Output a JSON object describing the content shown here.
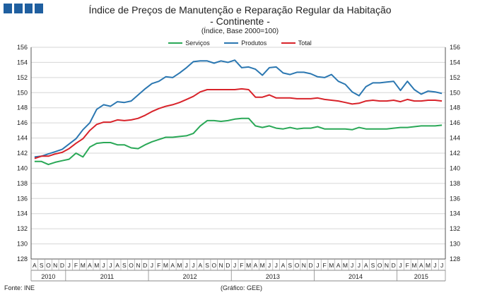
{
  "header": {
    "title": "Índice de Preços de Manutenção e Reparação Regular da Habitação",
    "subtitle": "- Continente -",
    "note": "(Índice, Base 2000=100)"
  },
  "footer": {
    "source": "Fonte: INE",
    "credit": "(Gráfico: GEE)"
  },
  "colors": {
    "Serviços": "#2aa857",
    "Produtos": "#2b77b1",
    "Total": "#d8232a",
    "logo": "#1f5fa0"
  },
  "chart_data": {
    "type": "line",
    "ylim": [
      128,
      156
    ],
    "yticks": [
      128,
      130,
      132,
      134,
      136,
      138,
      140,
      142,
      144,
      146,
      148,
      150,
      152,
      154,
      156
    ],
    "grid": true,
    "legend_position": "top-center",
    "x_month_labels": [
      "A",
      "S",
      "O",
      "N",
      "D",
      "J",
      "F",
      "M",
      "A",
      "M",
      "J",
      "J",
      "A",
      "S",
      "O",
      "N",
      "D",
      "J",
      "F",
      "M",
      "A",
      "M",
      "J",
      "J",
      "A",
      "S",
      "O",
      "N",
      "D",
      "J",
      "F",
      "M",
      "A",
      "M",
      "J",
      "J",
      "A",
      "S",
      "O",
      "N",
      "D",
      "J",
      "F",
      "M",
      "A",
      "M",
      "J",
      "J",
      "A",
      "S",
      "O",
      "N",
      "D",
      "J",
      "F",
      "M",
      "A",
      "M",
      "J",
      "J"
    ],
    "x_year_labels": [
      {
        "year": "2010",
        "start": 0,
        "end": 4
      },
      {
        "year": "2011",
        "start": 5,
        "end": 16
      },
      {
        "year": "2012",
        "start": 17,
        "end": 28
      },
      {
        "year": "2013",
        "start": 29,
        "end": 40
      },
      {
        "year": "2014",
        "start": 41,
        "end": 52
      },
      {
        "year": "2015",
        "start": 53,
        "end": 59
      }
    ],
    "series": [
      {
        "name": "Serviços",
        "values": [
          140.9,
          140.9,
          140.5,
          140.8,
          141.0,
          141.2,
          142.0,
          141.5,
          142.8,
          143.3,
          143.4,
          143.4,
          143.1,
          143.1,
          142.7,
          142.6,
          143.1,
          143.5,
          143.8,
          144.1,
          144.1,
          144.2,
          144.3,
          144.6,
          145.6,
          146.3,
          146.3,
          146.2,
          146.3,
          146.5,
          146.6,
          146.6,
          145.6,
          145.4,
          145.6,
          145.3,
          145.2,
          145.4,
          145.2,
          145.3,
          145.3,
          145.5,
          145.2,
          145.2,
          145.2,
          145.2,
          145.1,
          145.4,
          145.2,
          145.2,
          145.2,
          145.2,
          145.3,
          145.4,
          145.4,
          145.5,
          145.6,
          145.6,
          145.6,
          145.7
        ]
      },
      {
        "name": "Produtos",
        "values": [
          141.5,
          141.6,
          141.9,
          142.2,
          142.5,
          143.2,
          143.9,
          145.1,
          146.0,
          147.8,
          148.4,
          148.2,
          148.8,
          148.7,
          148.9,
          149.7,
          150.5,
          151.2,
          151.5,
          152.1,
          152.0,
          152.6,
          153.3,
          154.1,
          154.2,
          154.2,
          153.9,
          154.2,
          154.0,
          154.3,
          153.3,
          153.4,
          153.1,
          152.3,
          153.3,
          153.4,
          152.6,
          152.4,
          152.7,
          152.7,
          152.5,
          152.1,
          152.0,
          152.4,
          151.5,
          151.1,
          150.1,
          149.6,
          150.8,
          151.3,
          151.3,
          151.4,
          151.5,
          150.3,
          151.5,
          150.4,
          149.8,
          150.2,
          150.1,
          149.9
        ]
      },
      {
        "name": "Total",
        "values": [
          141.3,
          141.6,
          141.6,
          141.9,
          142.1,
          142.6,
          143.3,
          143.9,
          145.0,
          145.8,
          146.1,
          146.1,
          146.4,
          146.3,
          146.4,
          146.6,
          147.0,
          147.5,
          147.9,
          148.2,
          148.4,
          148.7,
          149.1,
          149.5,
          150.1,
          150.4,
          150.4,
          150.4,
          150.4,
          150.4,
          150.5,
          150.4,
          149.4,
          149.4,
          149.7,
          149.3,
          149.3,
          149.3,
          149.2,
          149.2,
          149.2,
          149.3,
          149.1,
          149.0,
          148.9,
          148.7,
          148.5,
          148.6,
          148.9,
          149.0,
          148.9,
          148.9,
          149.0,
          148.8,
          149.1,
          148.9,
          148.9,
          149.0,
          149.0,
          148.9
        ]
      }
    ]
  }
}
